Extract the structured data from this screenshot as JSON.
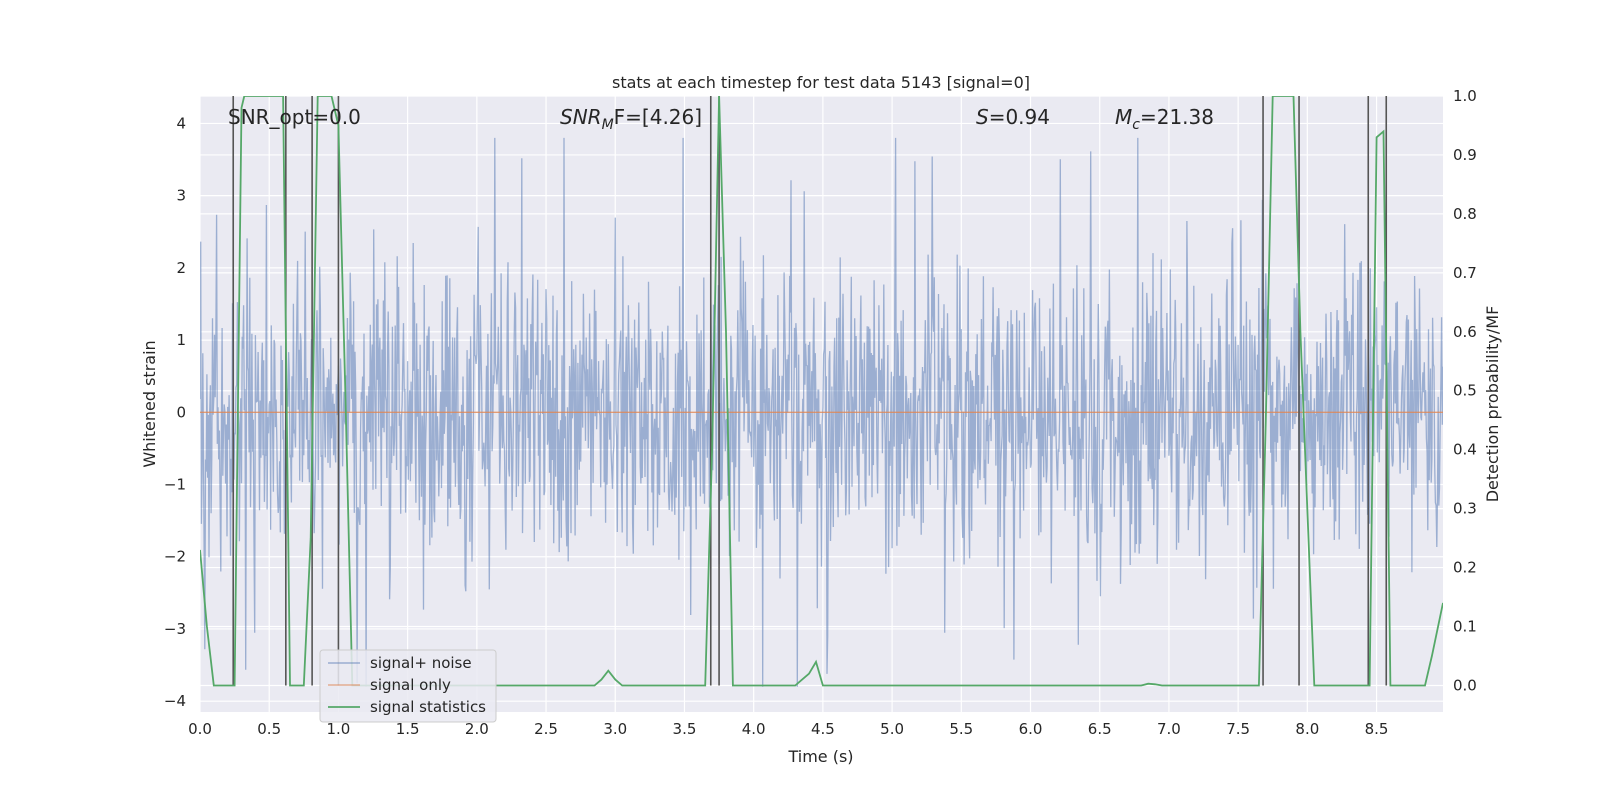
{
  "chart_data": {
    "type": "line",
    "title": "stats at each timestep for test data 5143 [signal=0]",
    "xlabel": "Time (s)",
    "ylabel_left": "Whitened strain",
    "ylabel_right": "Detection probability/MF",
    "xlim": [
      0.0,
      8.98
    ],
    "ylim_left": [
      -4.15,
      4.38
    ],
    "ylim_right": [
      -0.045,
      1.0
    ],
    "xticks": [
      "0.0",
      "0.5",
      "1.0",
      "1.5",
      "2.0",
      "2.5",
      "3.0",
      "3.5",
      "4.0",
      "4.5",
      "5.0",
      "5.5",
      "6.0",
      "6.5",
      "7.0",
      "7.5",
      "8.0",
      "8.5"
    ],
    "xtick_values": [
      0.0,
      0.5,
      1.0,
      1.5,
      2.0,
      2.5,
      3.0,
      3.5,
      4.0,
      4.5,
      5.0,
      5.5,
      6.0,
      6.5,
      7.0,
      7.5,
      8.0,
      8.5
    ],
    "yticks_left": [
      "−4",
      "−3",
      "−2",
      "−1",
      "0",
      "1",
      "2",
      "3",
      "4"
    ],
    "ytick_values_left": [
      -4,
      -3,
      -2,
      -1,
      0,
      1,
      2,
      3,
      4
    ],
    "yticks_right": [
      "0.0",
      "0.1",
      "0.2",
      "0.3",
      "0.4",
      "0.5",
      "0.6",
      "0.7",
      "0.8",
      "0.9",
      "1.0"
    ],
    "ytick_values_right": [
      0.0,
      0.1,
      0.2,
      0.3,
      0.4,
      0.5,
      0.6,
      0.7,
      0.8,
      0.9,
      1.0
    ],
    "grid": true,
    "annotations": {
      "snr_opt": "SNR_opt=0.0",
      "snr_mf_prefix": "SNR",
      "snr_mf_sub": "M",
      "snr_mf_suffix": "F=[4.26]",
      "s_prefix": "S",
      "s_suffix": "=0.94",
      "mc_prefix": "M",
      "mc_sub": "c",
      "mc_suffix": "=21.38"
    },
    "legend": {
      "placement": "lower-left",
      "entries": [
        "signal+ noise",
        "signal only",
        "signal statistics"
      ]
    },
    "series": [
      {
        "name": "signal+ noise",
        "axis": "left",
        "kind": "noise",
        "color": "#4c72b0",
        "sample_rate_hz": 200,
        "envelope_max": 3.8,
        "envelope_min": -3.8
      },
      {
        "name": "signal only",
        "axis": "left",
        "color": "#dd8452",
        "x": [
          0.0,
          8.98
        ],
        "y": [
          0.0,
          0.0
        ]
      },
      {
        "name": "signal statistics",
        "axis": "right",
        "color": "#55a868",
        "x": [
          0.0,
          0.05,
          0.1,
          0.25,
          0.3,
          0.32,
          0.35,
          0.55,
          0.6,
          0.62,
          0.65,
          0.7,
          0.72,
          0.75,
          0.8,
          0.85,
          0.9,
          0.95,
          1.0,
          1.05,
          1.1,
          1.15,
          1.2,
          2.85,
          2.9,
          2.95,
          3.0,
          3.05,
          3.6,
          3.65,
          3.7,
          3.75,
          3.8,
          3.85,
          4.0,
          4.3,
          4.35,
          4.4,
          4.45,
          4.5,
          6.75,
          6.8,
          6.85,
          6.9,
          6.95,
          7.6,
          7.65,
          7.7,
          7.75,
          7.9,
          7.95,
          8.0,
          8.05,
          8.1,
          8.4,
          8.45,
          8.5,
          8.55,
          8.6,
          8.75,
          8.85,
          8.9,
          8.98
        ],
        "y": [
          0.23,
          0.1,
          0.0,
          0.0,
          0.98,
          1.0,
          1.0,
          1.0,
          1.0,
          0.6,
          0.0,
          0.0,
          0.0,
          0.0,
          0.25,
          1.0,
          1.0,
          1.0,
          0.95,
          0.5,
          0.0,
          0.0,
          0.0,
          0.0,
          0.01,
          0.025,
          0.01,
          0.0,
          0.0,
          0.0,
          0.4,
          1.0,
          0.6,
          0.0,
          0.0,
          0.0,
          0.01,
          0.02,
          0.04,
          0.0,
          0.0,
          0.0,
          0.003,
          0.002,
          0.0,
          0.0,
          0.0,
          0.45,
          1.0,
          1.0,
          0.6,
          0.3,
          0.0,
          0.0,
          0.0,
          0.0,
          0.93,
          0.94,
          0.0,
          0.0,
          0.0,
          0.05,
          0.14
        ]
      }
    ],
    "vertical_lines": [
      0.24,
      0.62,
      0.81,
      1.0,
      3.69,
      3.75,
      7.68,
      7.94,
      8.44,
      8.57
    ]
  }
}
